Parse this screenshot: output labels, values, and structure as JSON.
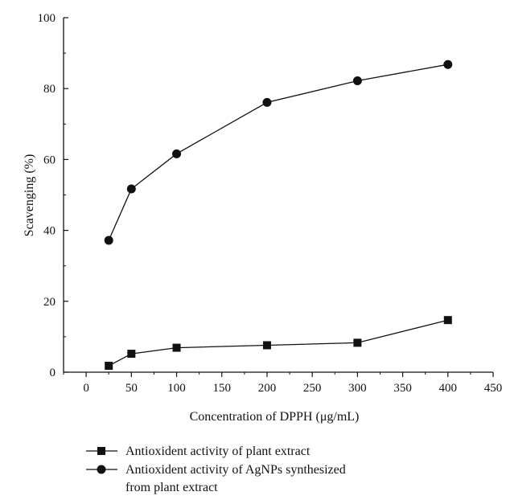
{
  "chart_data": {
    "type": "line",
    "xlabel": "Concentration of DPPH (μg/mL)",
    "ylabel": "Scavenging (%)",
    "xlim": [
      -25,
      450
    ],
    "ylim": [
      0,
      100
    ],
    "xticks": [
      0,
      50,
      100,
      150,
      200,
      250,
      300,
      350,
      400,
      450
    ],
    "yticks": [
      0,
      20,
      40,
      60,
      80,
      100
    ],
    "grid": false,
    "legend_position": "bottom-left",
    "series": [
      {
        "name": "Antioxident activity of plant extract",
        "marker": "square",
        "x": [
          25,
          50,
          100,
          200,
          300,
          400
        ],
        "y": [
          1.8,
          5.2,
          6.9,
          7.6,
          8.3,
          14.7
        ]
      },
      {
        "name": "Antioxident activity of AgNPs synthesized from plant extract",
        "marker": "circle",
        "x": [
          25,
          50,
          100,
          200,
          300,
          400
        ],
        "y": [
          37.2,
          51.7,
          61.6,
          76.1,
          82.2,
          86.8
        ]
      }
    ]
  },
  "legend": {
    "items": [
      {
        "lines": [
          "Antioxident activity of plant extract"
        ]
      },
      {
        "lines": [
          "Antioxident activity of AgNPs synthesized",
          "from plant extract"
        ]
      }
    ]
  }
}
